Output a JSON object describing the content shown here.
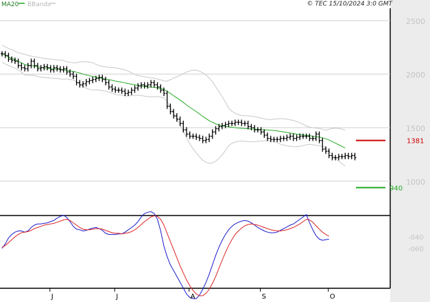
{
  "header": {
    "legend_ma": "MA20",
    "legend_bb": "BBands",
    "copyright": "© TEC 15/10/2024 3:0 GMT"
  },
  "colors": {
    "ma": "#22aa22",
    "bands": "#c8c8c8",
    "price": "#000000",
    "resistance": "#cc0000",
    "support": "#22aa22",
    "macd": "#1a1acc",
    "signal": "#dd2222",
    "grid": "#cfcfcf",
    "side_panel": "#ececec"
  },
  "chart_data": [
    {
      "type": "candlestick",
      "panel": "price",
      "y_ticks": [
        {
          "value": 2500,
          "label": "2500"
        },
        {
          "value": 2000,
          "label": "2000"
        },
        {
          "value": 1500,
          "label": "1500"
        },
        {
          "value": 1000,
          "label": "1000"
        }
      ],
      "ylim": [
        700,
        2650
      ],
      "x_ticks": [
        {
          "index": 15,
          "label": "J"
        },
        {
          "index": 35,
          "label": "J"
        },
        {
          "index": 58,
          "label": "A"
        },
        {
          "index": 80,
          "label": "S"
        },
        {
          "index": 101,
          "label": "O"
        }
      ],
      "levels": [
        {
          "name": "resistance",
          "value": 1381,
          "label": "1381"
        },
        {
          "name": "support",
          "value": 940,
          "label": "940"
        }
      ],
      "close": [
        2190,
        2175,
        2140,
        2130,
        2120,
        2080,
        2060,
        2050,
        2080,
        2120,
        2080,
        2050,
        2060,
        2070,
        2060,
        2040,
        2060,
        2050,
        2040,
        2050,
        2020,
        2000,
        1980,
        1920,
        1900,
        1910,
        1930,
        1940,
        1950,
        1960,
        1970,
        1950,
        1920,
        1880,
        1860,
        1850,
        1850,
        1840,
        1820,
        1830,
        1850,
        1870,
        1890,
        1900,
        1890,
        1900,
        1920,
        1900,
        1880,
        1850,
        1820,
        1700,
        1650,
        1610,
        1580,
        1540,
        1480,
        1440,
        1420,
        1420,
        1410,
        1400,
        1380,
        1390,
        1420,
        1460,
        1490,
        1510,
        1520,
        1530,
        1540,
        1540,
        1550,
        1550,
        1540,
        1540,
        1510,
        1500,
        1480,
        1480,
        1460,
        1430,
        1400,
        1390,
        1390,
        1390,
        1400,
        1400,
        1410,
        1420,
        1400,
        1410,
        1420,
        1420,
        1420,
        1400,
        1400,
        1440,
        1380,
        1300,
        1280,
        1240,
        1220,
        1220,
        1230,
        1230,
        1240,
        1230,
        1240,
        1220
      ],
      "ma20": [
        2190,
        2175,
        2160,
        2148,
        2135,
        2120,
        2105,
        2090,
        2082,
        2080,
        2075,
        2068,
        2062,
        2058,
        2055,
        2052,
        2049,
        2046,
        2043,
        2040,
        2035,
        2030,
        2025,
        2018,
        2010,
        2000,
        1992,
        1985,
        1978,
        1972,
        1966,
        1960,
        1954,
        1948,
        1942,
        1935,
        1930,
        1925,
        1918,
        1912,
        1906,
        1900,
        1895,
        1890,
        1885,
        1880,
        1878,
        1876,
        1872,
        1866,
        1858,
        1840,
        1820,
        1798,
        1778,
        1758,
        1735,
        1712,
        1690,
        1670,
        1650,
        1628,
        1605,
        1585,
        1565,
        1550,
        1535,
        1525,
        1518,
        1512,
        1508,
        1503,
        1500,
        1497,
        1494,
        1492,
        1490,
        1488,
        1486,
        1484,
        1482,
        1480,
        1478,
        1476,
        1474,
        1470,
        1465,
        1460,
        1455,
        1450,
        1445,
        1440,
        1436,
        1432,
        1428,
        1425,
        1420,
        1416,
        1412,
        1405,
        1396,
        1385,
        1370,
        1355,
        1340,
        1325,
        1310
      ]
    },
    {
      "type": "line",
      "panel": "macd",
      "y_ticks": [
        {
          "value": -40,
          "label": "-040"
        },
        {
          "value": -60,
          "label": "-060"
        }
      ],
      "ylim": [
        -164,
        6
      ],
      "series": [
        {
          "values": [
            -60,
            -52,
            -42,
            -36,
            -32,
            -30,
            -30,
            -32,
            -30,
            -24,
            -20,
            -18,
            -18,
            -17,
            -16,
            -14,
            -12,
            -8,
            -5,
            -3,
            -7,
            -14,
            -22,
            -27,
            -28,
            -30,
            -29,
            -27,
            -25,
            -24,
            -26,
            -29,
            -34,
            -36,
            -36,
            -36,
            -35,
            -35,
            -32,
            -28,
            -24,
            -20,
            -14,
            -6,
            0,
            2,
            3,
            0,
            -10,
            -30,
            -56,
            -74,
            -88,
            -98,
            -108,
            -118,
            -128,
            -138,
            -144,
            -146,
            -146,
            -140,
            -130,
            -118,
            -104,
            -88,
            -72,
            -58,
            -46,
            -36,
            -28,
            -22,
            -18,
            -15,
            -13,
            -12,
            -13,
            -16,
            -20,
            -24,
            -27,
            -30,
            -32,
            -33,
            -33,
            -32,
            -29,
            -26,
            -23,
            -20,
            -18,
            -14,
            -10,
            -6,
            -2,
            -16,
            -28,
            -38,
            -44,
            -46,
            -45,
            -44
          ]
        },
        {
          "values": [
            -58,
            -55,
            -50,
            -45,
            -40,
            -36,
            -33,
            -32,
            -31,
            -29,
            -26,
            -24,
            -22,
            -20,
            -19,
            -18,
            -17,
            -15,
            -13,
            -11,
            -10,
            -12,
            -16,
            -20,
            -24,
            -27,
            -28,
            -28,
            -27,
            -26,
            -26,
            -27,
            -29,
            -31,
            -33,
            -34,
            -34,
            -35,
            -34,
            -33,
            -31,
            -28,
            -24,
            -19,
            -14,
            -10,
            -6,
            -4,
            -5,
            -10,
            -20,
            -34,
            -48,
            -62,
            -76,
            -90,
            -102,
            -114,
            -124,
            -132,
            -138,
            -141,
            -141,
            -137,
            -130,
            -120,
            -108,
            -94,
            -80,
            -67,
            -55,
            -45,
            -36,
            -30,
            -25,
            -21,
            -19,
            -18,
            -19,
            -20,
            -22,
            -24,
            -26,
            -28,
            -29,
            -30,
            -30,
            -29,
            -28,
            -26,
            -24,
            -21,
            -18,
            -14,
            -10,
            -11,
            -15,
            -21,
            -27,
            -32,
            -36,
            -39
          ]
        }
      ]
    }
  ]
}
